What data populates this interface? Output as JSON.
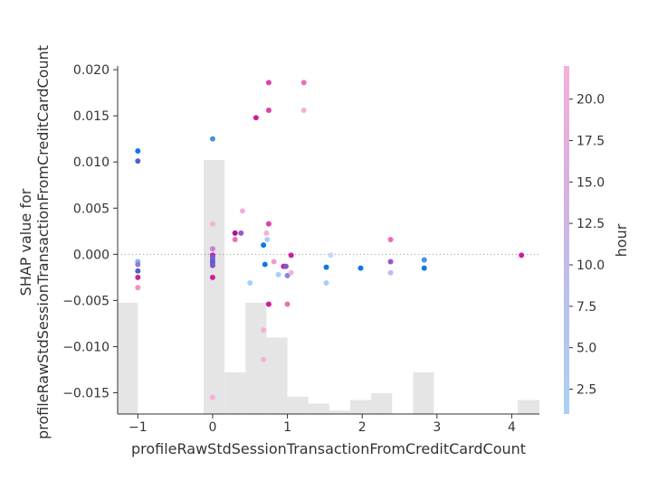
{
  "chart_data": {
    "type": "scatter",
    "xlabel": "profileRawStdSessionTransactionFromCreditCardCount",
    "ylabel_lines": [
      "SHAP value for",
      "profileRawStdSessionTransactionFromCreditCardCount"
    ],
    "xlim": [
      -1.27,
      4.37
    ],
    "ylim": [
      -0.0173,
      0.0204
    ],
    "x_ticks": [
      -1,
      0,
      1,
      2,
      3,
      4
    ],
    "x_tick_labels": [
      "−1",
      "0",
      "1",
      "2",
      "3",
      "4"
    ],
    "y_ticks": [
      0.02,
      0.015,
      0.01,
      0.005,
      0.0,
      -0.005,
      -0.01,
      -0.015
    ],
    "y_tick_labels": [
      "0.020",
      "0.015",
      "0.010",
      "0.005",
      "0.000",
      "−0.005",
      "−0.010",
      "−0.015"
    ],
    "zero_line": true,
    "colorbar": {
      "label": "hour",
      "range": [
        1,
        22
      ],
      "ticks": [
        2.5,
        5.0,
        7.5,
        10.0,
        12.5,
        15.0,
        17.5,
        20.0
      ],
      "tick_labels": [
        "2.5",
        "5.0",
        "7.5",
        "10.0",
        "12.5",
        "15.0",
        "17.5",
        "20.0"
      ],
      "colors": [
        "#0e78e8",
        "#7e58c8",
        "#d418a0",
        "#f5b0d8"
      ]
    },
    "histogram": {
      "color": "#e5e5e5",
      "bins": [
        {
          "x0": -1.27,
          "x1": -1.0,
          "h": 0.32
        },
        {
          "x0": -0.12,
          "x1": 0.16,
          "h": 0.73
        },
        {
          "x0": 0.16,
          "x1": 0.44,
          "h": 0.12
        },
        {
          "x0": 0.44,
          "x1": 0.72,
          "h": 0.32
        },
        {
          "x0": 0.72,
          "x1": 1.0,
          "h": 0.22
        },
        {
          "x0": 1.0,
          "x1": 1.28,
          "h": 0.05
        },
        {
          "x0": 1.28,
          "x1": 1.56,
          "h": 0.03
        },
        {
          "x0": 1.56,
          "x1": 1.84,
          "h": 0.01
        },
        {
          "x0": 1.84,
          "x1": 2.12,
          "h": 0.04
        },
        {
          "x0": 2.12,
          "x1": 2.4,
          "h": 0.06
        },
        {
          "x0": 2.68,
          "x1": 2.96,
          "h": 0.12
        },
        {
          "x0": 4.08,
          "x1": 4.37,
          "h": 0.04
        }
      ]
    },
    "points": [
      {
        "x": -1.0,
        "y": 0.0112,
        "c": "#0e78e8"
      },
      {
        "x": -1.0,
        "y": 0.0101,
        "c": "#5060c8"
      },
      {
        "x": -1.0,
        "y": -0.0008,
        "c": "#7ab8f0"
      },
      {
        "x": -1.0,
        "y": -0.0011,
        "c": "#9a78d8"
      },
      {
        "x": -1.0,
        "y": -0.0018,
        "c": "#5060c8"
      },
      {
        "x": -1.0,
        "y": -0.0025,
        "c": "#c02a90"
      },
      {
        "x": -1.0,
        "y": -0.0036,
        "c": "#f090c8"
      },
      {
        "x": 0.0,
        "y": 0.0125,
        "c": "#4a90e0"
      },
      {
        "x": 0.0,
        "y": 0.0033,
        "c": "#f5b0d8"
      },
      {
        "x": 0.0,
        "y": 0.0006,
        "c": "#c882d0"
      },
      {
        "x": 0.0,
        "y": -0.0001,
        "c": "#d418a0"
      },
      {
        "x": 0.0,
        "y": -0.0003,
        "c": "#7e58c8"
      },
      {
        "x": 0.0,
        "y": -0.0006,
        "c": "#7e58c8"
      },
      {
        "x": 0.0,
        "y": -0.0009,
        "c": "#5060c8"
      },
      {
        "x": 0.0,
        "y": -0.0012,
        "c": "#7e58c8"
      },
      {
        "x": 0.0,
        "y": -0.0025,
        "c": "#d418a0"
      },
      {
        "x": 0.0,
        "y": -0.0155,
        "c": "#f5b0d8"
      },
      {
        "x": 0.3,
        "y": 0.0023,
        "c": "#b01090"
      },
      {
        "x": 0.3,
        "y": 0.0016,
        "c": "#e870b8"
      },
      {
        "x": 0.38,
        "y": 0.0023,
        "c": "#9a58c8"
      },
      {
        "x": 0.4,
        "y": 0.0047,
        "c": "#f5b0d8"
      },
      {
        "x": 0.5,
        "y": -0.0031,
        "c": "#a8d0f5"
      },
      {
        "x": 0.58,
        "y": 0.0148,
        "c": "#d418a0"
      },
      {
        "x": 0.68,
        "y": 0.001,
        "c": "#0e78e8"
      },
      {
        "x": 0.68,
        "y": -0.0082,
        "c": "#f5b0d8"
      },
      {
        "x": 0.68,
        "y": -0.0114,
        "c": "#f5b0d8"
      },
      {
        "x": 0.7,
        "y": -0.0011,
        "c": "#0e78e8"
      },
      {
        "x": 0.72,
        "y": 0.0023,
        "c": "#f5b0d8"
      },
      {
        "x": 0.73,
        "y": 0.0016,
        "c": "#a8d0f5"
      },
      {
        "x": 0.75,
        "y": 0.0186,
        "c": "#e040a8"
      },
      {
        "x": 0.75,
        "y": 0.0156,
        "c": "#e040a8"
      },
      {
        "x": 0.75,
        "y": 0.0033,
        "c": "#e040a8"
      },
      {
        "x": 0.75,
        "y": -0.0054,
        "c": "#d418a0"
      },
      {
        "x": 0.82,
        "y": -0.0008,
        "c": "#e7a0d0"
      },
      {
        "x": 0.88,
        "y": -0.0022,
        "c": "#a8d0f5"
      },
      {
        "x": 0.95,
        "y": -0.0013,
        "c": "#d418a0"
      },
      {
        "x": 0.98,
        "y": -0.0013,
        "c": "#7e58c8"
      },
      {
        "x": 1.0,
        "y": -0.0023,
        "c": "#7e88e0"
      },
      {
        "x": 1.0,
        "y": -0.0054,
        "c": "#e870b8"
      },
      {
        "x": 1.05,
        "y": -0.0001,
        "c": "#d418a0"
      },
      {
        "x": 1.05,
        "y": -0.002,
        "c": "#f5b0d8"
      },
      {
        "x": 1.22,
        "y": 0.0186,
        "c": "#e870b8"
      },
      {
        "x": 1.22,
        "y": 0.0156,
        "c": "#f5b0d8"
      },
      {
        "x": 1.52,
        "y": -0.0014,
        "c": "#0e78e8"
      },
      {
        "x": 1.52,
        "y": -0.0031,
        "c": "#a8d0f5"
      },
      {
        "x": 1.58,
        "y": -0.0001,
        "c": "#c8d8f8"
      },
      {
        "x": 1.98,
        "y": -0.0015,
        "c": "#0e78e8"
      },
      {
        "x": 2.38,
        "y": 0.0016,
        "c": "#e870b8"
      },
      {
        "x": 2.38,
        "y": -0.0008,
        "c": "#9a58c8"
      },
      {
        "x": 2.38,
        "y": -0.002,
        "c": "#c8b8f0"
      },
      {
        "x": 2.83,
        "y": -0.0006,
        "c": "#4a90e0"
      },
      {
        "x": 2.83,
        "y": -0.0015,
        "c": "#0e78e8"
      },
      {
        "x": 4.13,
        "y": -0.0001,
        "c": "#d418a0"
      }
    ]
  }
}
